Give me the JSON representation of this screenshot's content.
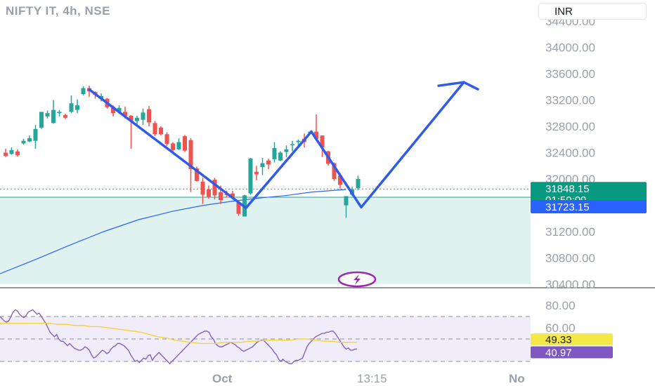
{
  "header": {
    "title": "NIFTY IT, 4h, NSE",
    "currency": "INR"
  },
  "colors": {
    "up": "#26a69a",
    "down": "#ef5350",
    "ma": "#2962ff",
    "drawing": "#2f5be8",
    "zone": "#e0f2ef",
    "rsi": "#7e57c2",
    "rsi_ma": "#f5d22c",
    "rsi_band": "#f1ecfa",
    "last_price_tag": "#089981",
    "ma_tag": "#2962ff",
    "rsi_tag": "#7e57c2",
    "rsi_ma_tag": "#f5e94a"
  },
  "chart_data": [
    {
      "type": "candlestick",
      "title": "NIFTY IT, 4h, NSE",
      "ylim": [
        30400,
        34400
      ],
      "y_ticks": [
        "30400.00",
        "30800.00",
        "31200.00",
        "32000.00",
        "32400.00",
        "32800.00",
        "33200.00",
        "33600.00",
        "34000.00",
        "34400.00"
      ],
      "x_ticks": [
        "Oct",
        "13:15",
        "No"
      ],
      "ohlc": [
        [
          32400,
          32460,
          32330,
          32350
        ],
        [
          32380,
          32480,
          32370,
          32440
        ],
        [
          32420,
          32450,
          32340,
          32360
        ],
        [
          32540,
          32610,
          32520,
          32580
        ],
        [
          32570,
          32660,
          32560,
          32620
        ],
        [
          32580,
          32820,
          32460,
          32760
        ],
        [
          32780,
          33000,
          32760,
          33020
        ],
        [
          32950,
          33040,
          32920,
          33000
        ],
        [
          32850,
          33200,
          32840,
          33050
        ],
        [
          33000,
          33050,
          32950,
          33020
        ],
        [
          32970,
          32990,
          32910,
          32930
        ],
        [
          33020,
          33270,
          33000,
          33150
        ],
        [
          33050,
          33210,
          33000,
          33120
        ],
        [
          33290,
          33410,
          33270,
          33380
        ],
        [
          33380,
          33420,
          33250,
          33330
        ],
        [
          33320,
          33330,
          33220,
          33280
        ],
        [
          33220,
          33300,
          33180,
          33260
        ],
        [
          33220,
          33230,
          33070,
          33090
        ],
        [
          33100,
          33120,
          32950,
          33000
        ],
        [
          33020,
          33120,
          33010,
          33080
        ],
        [
          33020,
          33100,
          32920,
          32960
        ],
        [
          32960,
          32970,
          32460,
          32880
        ],
        [
          32880,
          32960,
          32830,
          32930
        ],
        [
          32900,
          33070,
          32820,
          33010
        ],
        [
          33060,
          33110,
          32800,
          32860
        ],
        [
          32850,
          32880,
          32650,
          32680
        ],
        [
          32780,
          32800,
          32660,
          32680
        ],
        [
          32680,
          32710,
          32500,
          32530
        ],
        [
          32540,
          32560,
          32420,
          32440
        ],
        [
          32450,
          32620,
          32440,
          32560
        ],
        [
          32650,
          32670,
          32410,
          32430
        ],
        [
          32590,
          32620,
          31800,
          32150
        ],
        [
          32160,
          32190,
          31960,
          31970
        ],
        [
          31960,
          32020,
          31620,
          31760
        ],
        [
          31840,
          31900,
          31700,
          31730
        ],
        [
          31990,
          32020,
          31690,
          31750
        ],
        [
          31800,
          31900,
          31620,
          31680
        ],
        [
          31770,
          31820,
          31720,
          31760
        ],
        [
          31780,
          31820,
          31700,
          31730
        ],
        [
          31640,
          31660,
          31440,
          31470
        ],
        [
          31430,
          31760,
          31450,
          31750
        ],
        [
          31780,
          32320,
          31760,
          32310
        ],
        [
          32110,
          32200,
          31980,
          32070
        ],
        [
          32180,
          32320,
          32060,
          32240
        ],
        [
          32280,
          32310,
          32150,
          32220
        ],
        [
          32300,
          32560,
          32250,
          32470
        ],
        [
          32280,
          32420,
          32270,
          32400
        ],
        [
          32410,
          32510,
          32330,
          32450
        ],
        [
          32520,
          32580,
          32420,
          32530
        ],
        [
          32560,
          32600,
          32500,
          32580
        ],
        [
          32610,
          32690,
          32480,
          32560
        ],
        [
          32690,
          32730,
          32690,
          32720
        ],
        [
          32720,
          32980,
          32590,
          32610
        ],
        [
          32660,
          32660,
          32330,
          32480
        ],
        [
          32420,
          32430,
          32200,
          32230
        ],
        [
          32240,
          32250,
          31970,
          32000
        ],
        [
          32050,
          32090,
          31850,
          31910
        ],
        [
          31600,
          31700,
          31410,
          31740
        ],
        [
          31760,
          31880,
          31740,
          31840
        ],
        [
          31860,
          32050,
          31830,
          32000
        ]
      ],
      "ma_line": [
        [
          0,
          30560
        ],
        [
          10,
          30770
        ],
        [
          20,
          30990
        ],
        [
          30,
          31200
        ],
        [
          40,
          31380
        ],
        [
          50,
          31510
        ],
        [
          59,
          31600
        ],
        [
          67,
          31660
        ],
        [
          75,
          31710
        ],
        [
          83,
          31750
        ],
        [
          90,
          31800
        ],
        [
          100,
          31840
        ]
      ],
      "zone_top": 31723.15,
      "last_price_line": 31848.15,
      "drawing_path": [
        [
          33360,
          0
        ],
        [
          31560,
          0
        ],
        [
          32720,
          0
        ],
        [
          31570,
          0
        ],
        [
          33470,
          0
        ]
      ],
      "tags": [
        {
          "label": "31848.15",
          "value": 31848.15
        },
        {
          "label": "01:50:09"
        },
        {
          "label": "31723.15",
          "value": 31723.15
        }
      ],
      "xlabel": "",
      "ylabel": ""
    },
    {
      "type": "line",
      "title": "",
      "ylim": [
        30,
        90
      ],
      "y_ticks": [
        "60.00",
        "80.00"
      ],
      "band": [
        30,
        70
      ],
      "mid": 50,
      "series": [
        {
          "values": [
            70,
            68,
            66,
            65,
            66,
            70,
            74,
            76,
            75,
            72,
            70,
            69,
            71,
            74,
            75,
            76,
            74,
            72,
            73,
            70,
            67,
            64,
            60,
            56,
            54,
            52,
            54,
            50,
            48,
            48,
            46,
            44,
            46,
            44,
            42,
            41,
            40,
            40,
            41,
            43,
            42,
            40,
            36,
            33,
            34,
            36,
            38,
            40,
            39,
            37,
            38,
            41,
            43,
            44,
            46,
            46,
            45,
            44,
            42,
            40,
            36,
            33,
            30,
            31,
            29,
            31,
            33,
            32,
            35,
            36,
            31,
            34,
            36,
            38,
            36,
            34,
            32,
            30,
            28,
            30,
            32,
            34,
            36,
            38,
            40,
            42,
            44,
            46,
            48,
            50,
            52,
            54,
            55,
            56,
            57,
            57,
            56,
            52,
            50,
            46,
            44,
            43,
            43,
            44,
            45,
            46,
            47,
            46,
            45,
            43,
            42,
            40,
            39,
            40,
            41,
            42,
            43,
            45,
            47,
            48,
            49,
            49,
            47,
            45,
            43,
            41,
            38,
            36,
            32,
            30,
            32,
            30,
            29,
            28,
            28,
            30,
            31,
            31,
            32,
            33,
            38,
            43,
            46,
            48,
            50,
            52,
            53,
            54,
            55,
            55,
            56,
            56,
            57,
            57,
            55,
            52,
            49,
            46,
            43,
            41,
            42,
            40,
            40,
            41,
            41
          ]
        },
        {
          "values": [
            64,
            64,
            64,
            64,
            64,
            64,
            64,
            63,
            63,
            62,
            62,
            61,
            61,
            60,
            59,
            58,
            57,
            56,
            54,
            52,
            51,
            49,
            48,
            47,
            46,
            46,
            46,
            47,
            47,
            47,
            48,
            48,
            49,
            49,
            49,
            49,
            50,
            50,
            49,
            48,
            48,
            47,
            47,
            47
          ]
        }
      ],
      "tags": [
        {
          "label": "49.33",
          "value": 49.33
        },
        {
          "label": "40.97",
          "value": 40.97
        }
      ]
    }
  ]
}
